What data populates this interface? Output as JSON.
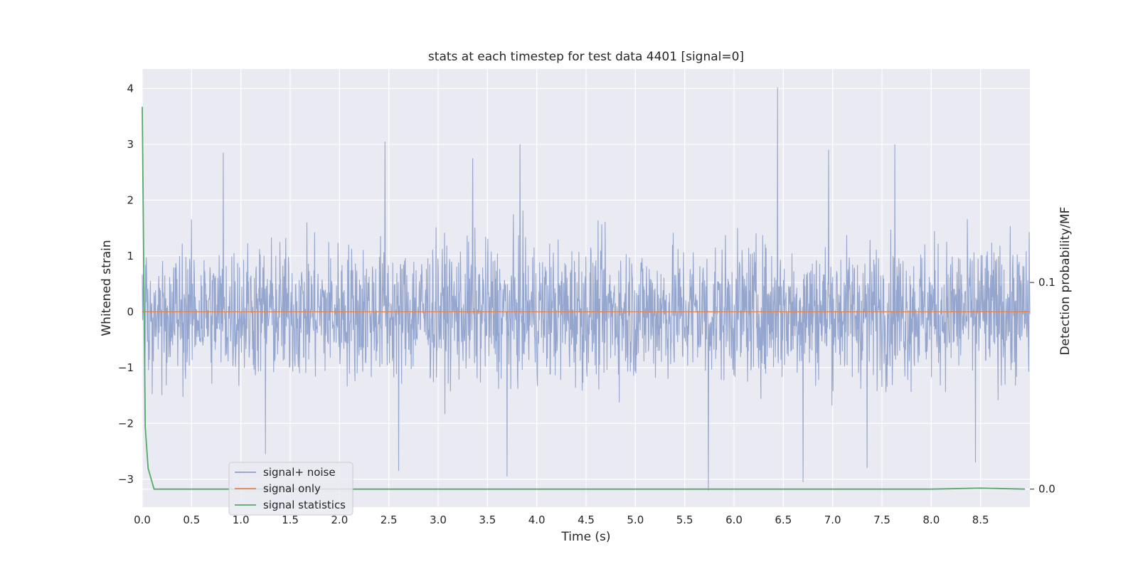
{
  "chart_data": {
    "type": "line",
    "title": "stats at each timestep for test data 4401 [signal=0]",
    "xlabel": "Time (s)",
    "ylabel": "Whitened strain",
    "y2label": "Detection probability/MF",
    "xlim": [
      0.0,
      9.0
    ],
    "ylim": [
      -3.5,
      4.35
    ],
    "y2lim": [
      -0.0087,
      0.2033
    ],
    "xticks": [
      "0.0",
      "0.5",
      "1.0",
      "1.5",
      "2.0",
      "2.5",
      "3.0",
      "3.5",
      "4.0",
      "4.5",
      "5.0",
      "5.5",
      "6.0",
      "6.5",
      "7.0",
      "7.5",
      "8.0",
      "8.5"
    ],
    "xtick_values": [
      0.0,
      0.5,
      1.0,
      1.5,
      2.0,
      2.5,
      3.0,
      3.5,
      4.0,
      4.5,
      5.0,
      5.5,
      6.0,
      6.5,
      7.0,
      7.5,
      8.0,
      8.5
    ],
    "yticks": [
      "4",
      "3",
      "2",
      "1",
      "0",
      "−1",
      "−2",
      "−3"
    ],
    "ytick_values": [
      4,
      3,
      2,
      1,
      0,
      -1,
      -2,
      -3
    ],
    "y2ticks": [
      "0.1",
      "0.0"
    ],
    "y2tick_values": [
      0.1,
      0.0
    ],
    "series": [
      {
        "name": "signal+ noise",
        "axis": "left",
        "color": "#8c9fca",
        "description": "whitened strain noise, approx uniform amplitude ~±1.8 with spikes",
        "peaks": [
          {
            "x": 0.82,
            "y": 2.85
          },
          {
            "x": 2.46,
            "y": 3.05
          },
          {
            "x": 3.35,
            "y": 2.75
          },
          {
            "x": 3.83,
            "y": 3.0
          },
          {
            "x": 6.44,
            "y": 4.02
          },
          {
            "x": 6.96,
            "y": 2.9
          },
          {
            "x": 7.63,
            "y": 3.0
          },
          {
            "x": 1.25,
            "y": -2.55
          },
          {
            "x": 2.6,
            "y": -2.85
          },
          {
            "x": 3.7,
            "y": -2.95
          },
          {
            "x": 5.74,
            "y": -3.2
          },
          {
            "x": 6.7,
            "y": -3.05
          },
          {
            "x": 7.35,
            "y": -2.8
          },
          {
            "x": 8.45,
            "y": -2.7
          }
        ]
      },
      {
        "name": "signal only",
        "axis": "left",
        "color": "#dd8452",
        "x": [
          0.0,
          9.0
        ],
        "y": [
          0.0,
          0.0
        ]
      },
      {
        "name": "signal statistics",
        "axis": "right",
        "color": "#55a868",
        "x": [
          0.0,
          0.03,
          0.06,
          0.12,
          0.5,
          1.0,
          2.0,
          3.0,
          4.0,
          5.0,
          6.0,
          7.0,
          8.0,
          8.5,
          8.95
        ],
        "y": [
          0.185,
          0.03,
          0.01,
          0.0,
          0.0,
          0.0,
          0.0,
          0.0,
          0.0,
          0.0,
          0.0,
          0.0,
          0.0,
          0.0005,
          0.0
        ]
      }
    ],
    "legend_position": "lower-left",
    "grid": true,
    "colors": {
      "axes_bg": "#eaeaf2",
      "grid": "#ffffff",
      "text": "#262626"
    }
  }
}
